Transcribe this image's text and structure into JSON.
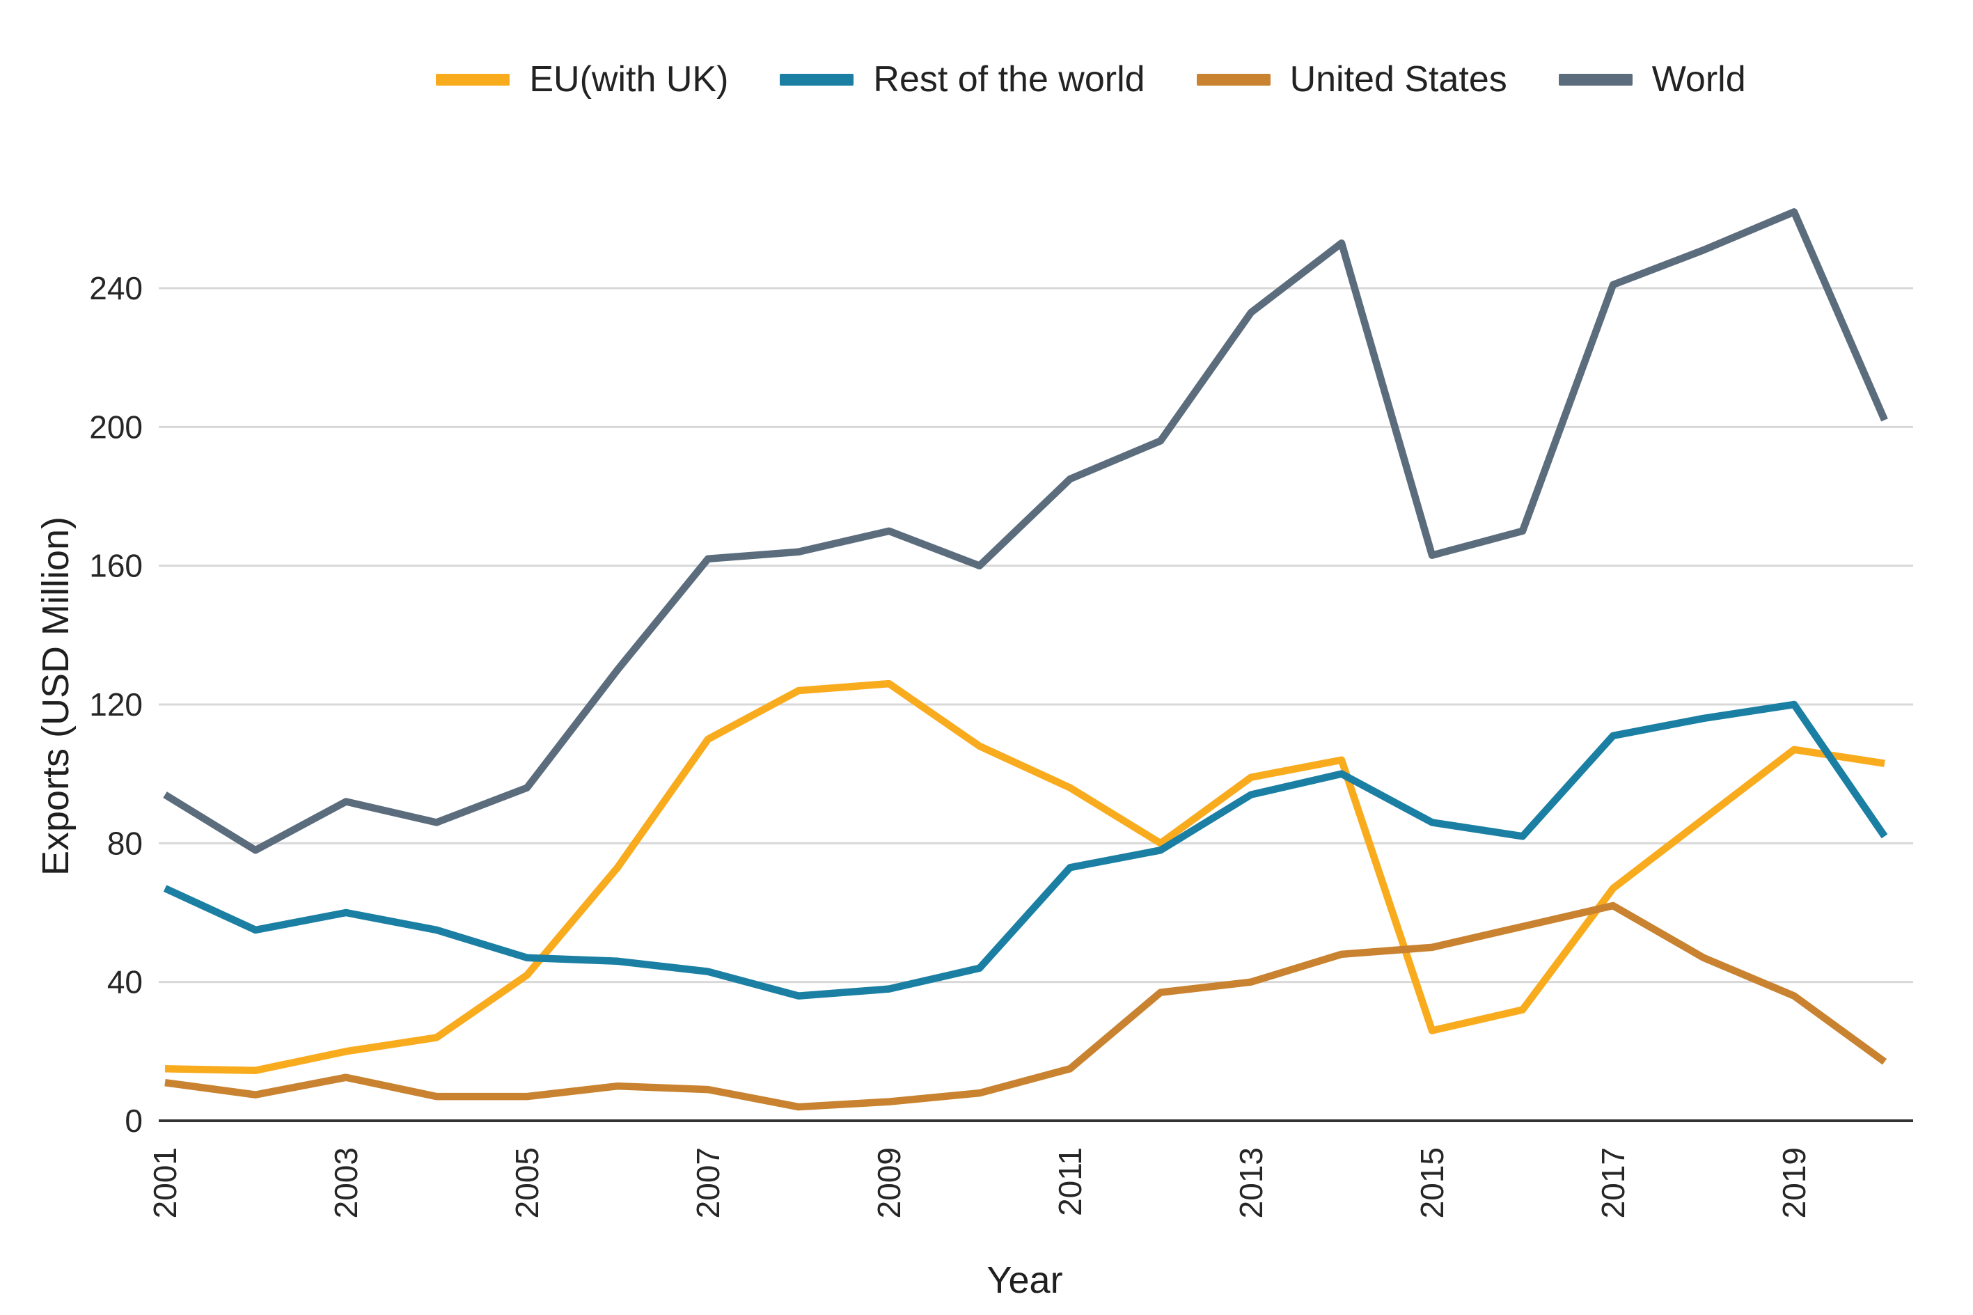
{
  "chart_data": {
    "type": "line",
    "title": "",
    "xlabel": "Year",
    "ylabel": "Exports (USD Million)",
    "x": [
      2001,
      2002,
      2003,
      2004,
      2005,
      2006,
      2007,
      2008,
      2009,
      2010,
      2011,
      2012,
      2013,
      2014,
      2015,
      2016,
      2017,
      2018,
      2019,
      2020
    ],
    "x_tick_years": [
      2001,
      2003,
      2005,
      2007,
      2009,
      2011,
      2013,
      2015,
      2017,
      2019
    ],
    "yticks": [
      0,
      40,
      80,
      120,
      160,
      200,
      240
    ],
    "ylim": [
      0,
      265
    ],
    "grid": true,
    "legend_position": "top-center",
    "background_color": "#ffffff",
    "gridline_color": "#d8d8d8",
    "axis_line_color": "#333333",
    "tick_label_color": "#262626",
    "series": [
      {
        "name": "EU(with UK)",
        "color": "#F9AB1E",
        "values": [
          15,
          14.5,
          20,
          24,
          42,
          73,
          110,
          124,
          126,
          108,
          96,
          80,
          99,
          104,
          26,
          32,
          67,
          87,
          107,
          103
        ]
      },
      {
        "name": "Rest of the world",
        "color": "#1A7FA3",
        "values": [
          67,
          55,
          60,
          55,
          47,
          46,
          43,
          36,
          38,
          44,
          73,
          78,
          94,
          100,
          86,
          82,
          111,
          116,
          120,
          82
        ]
      },
      {
        "name": "United States",
        "color": "#C9822F",
        "values": [
          11,
          7.5,
          12.5,
          7,
          7,
          10,
          9,
          4,
          5.5,
          8,
          15,
          37,
          40,
          48,
          50,
          56,
          62,
          47,
          36,
          17
        ]
      },
      {
        "name": "World",
        "color": "#5B6C7D",
        "values": [
          94,
          78,
          92,
          86,
          96,
          130,
          162,
          164,
          170,
          160,
          185,
          196,
          233,
          253,
          163,
          170,
          241,
          251,
          262,
          202
        ]
      }
    ]
  }
}
